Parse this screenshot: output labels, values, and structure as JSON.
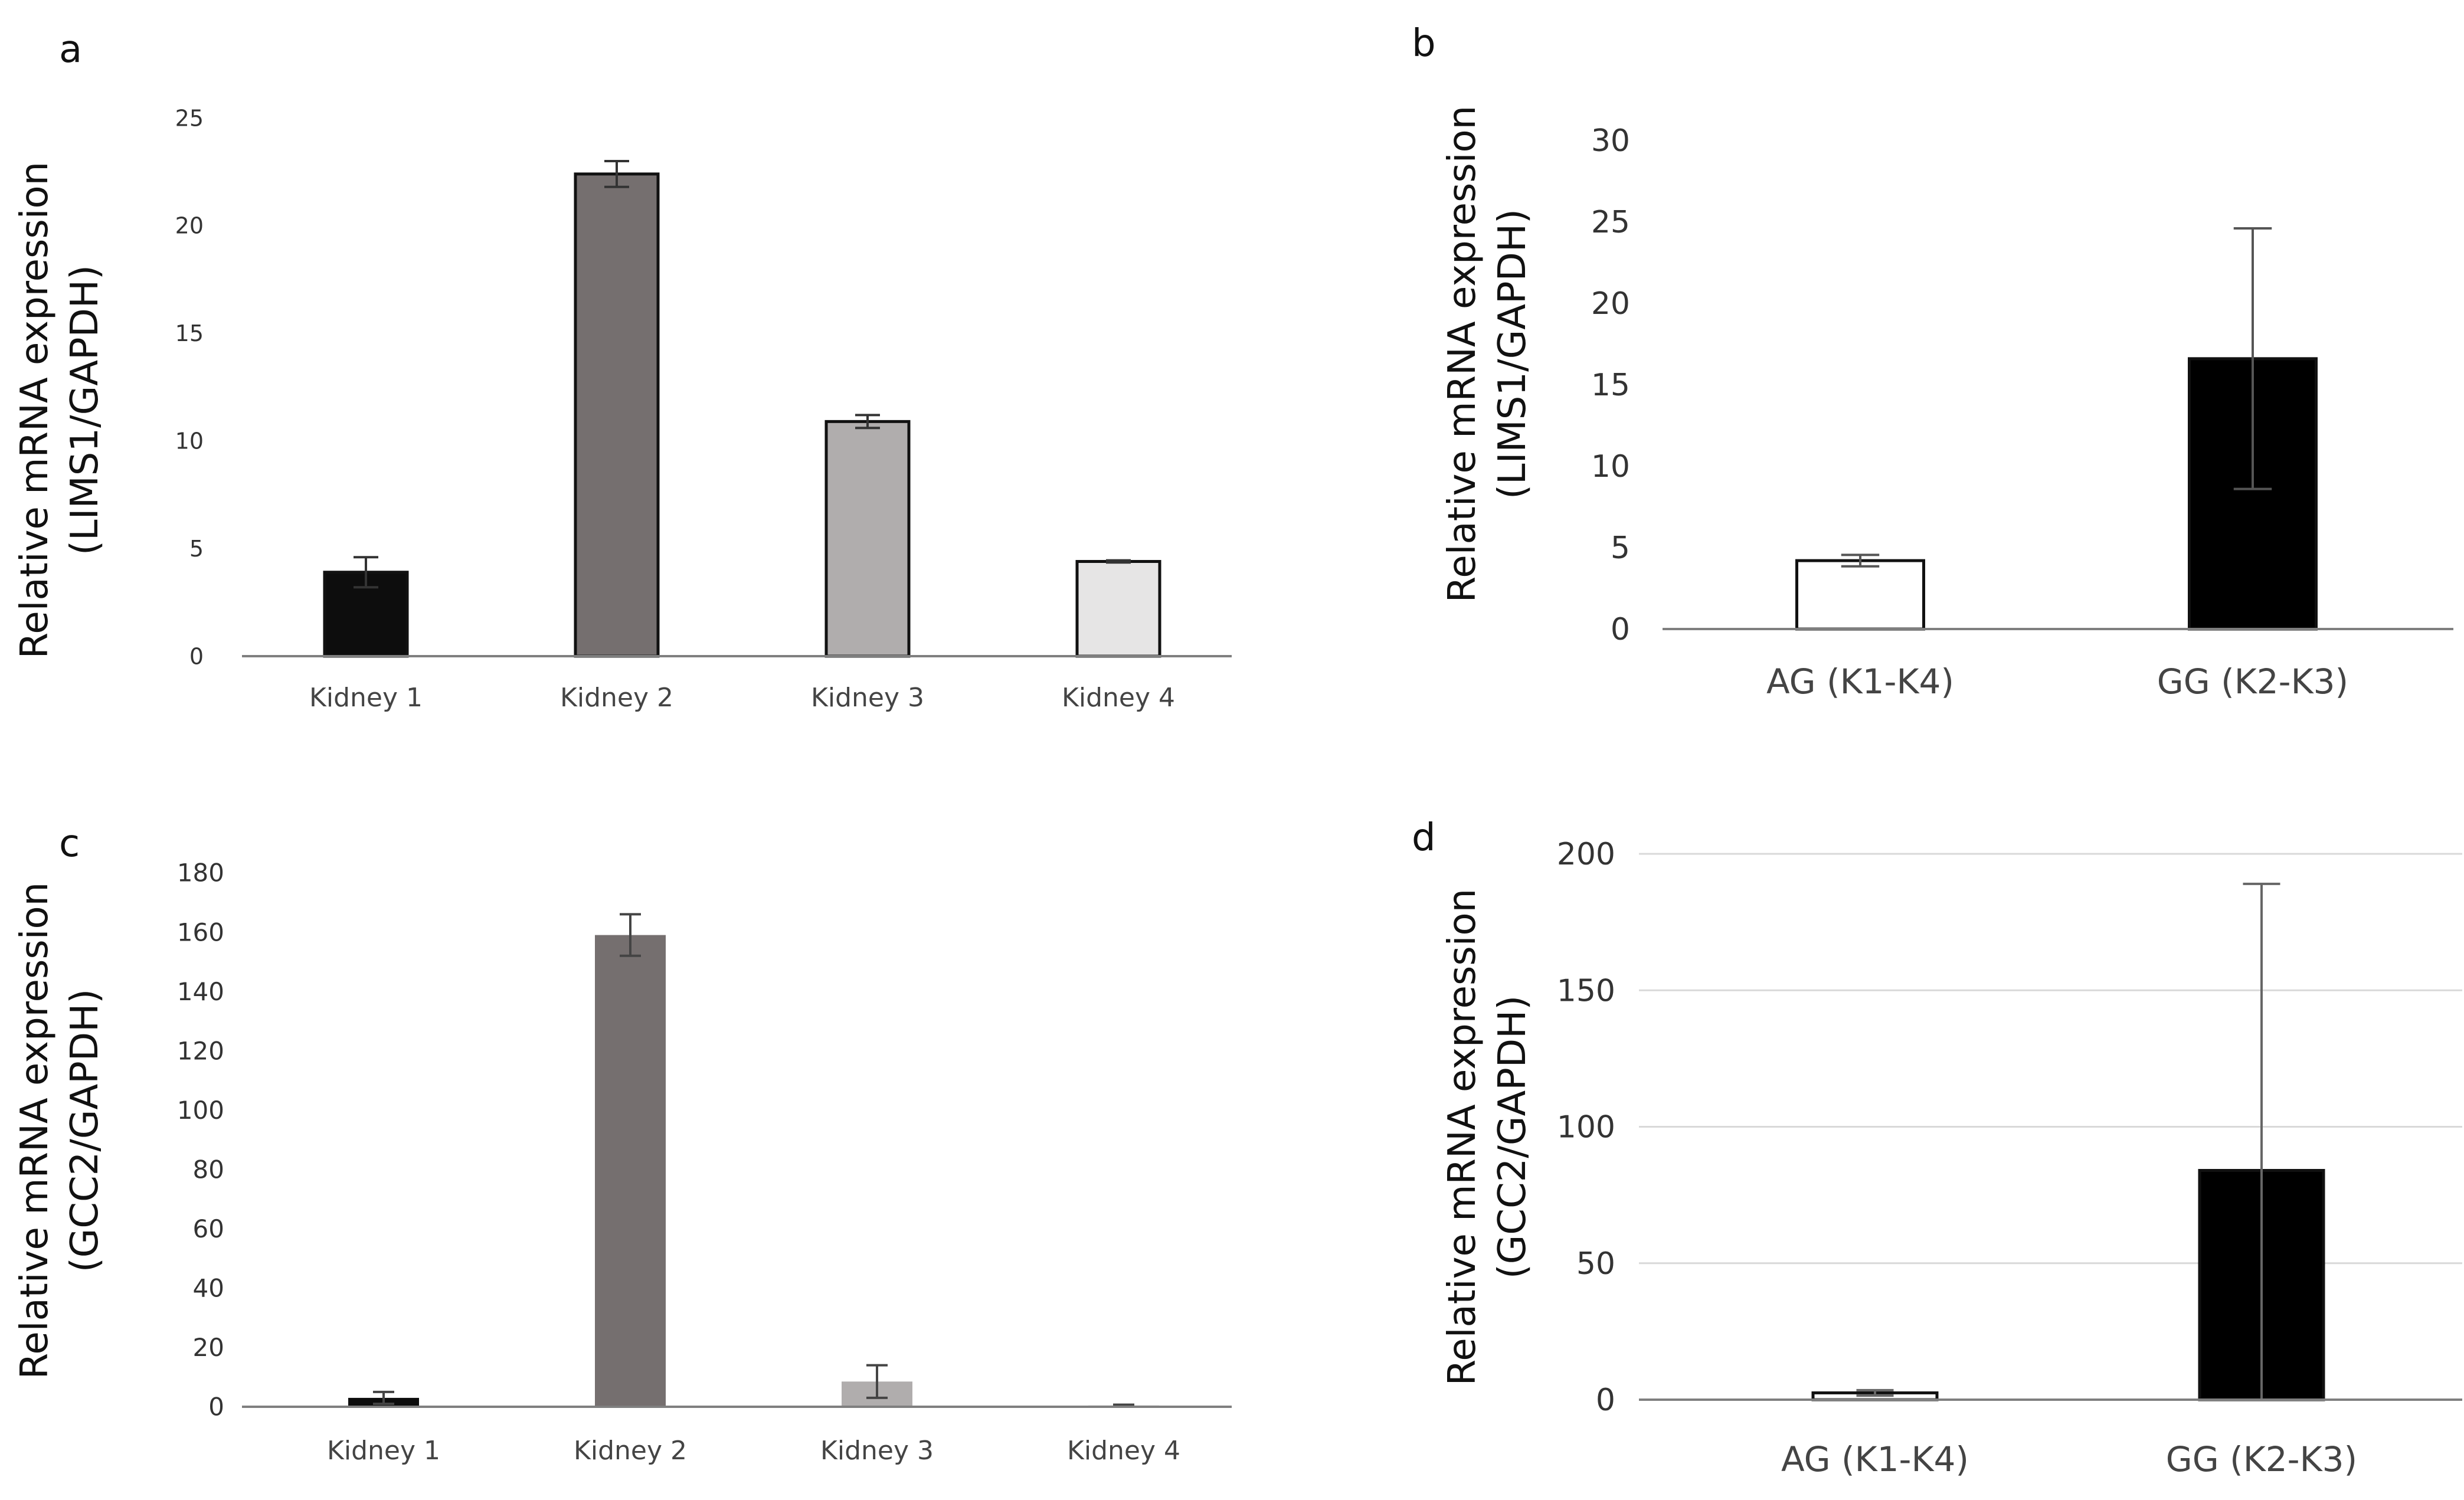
{
  "chart_data": [
    {
      "panel": "a",
      "type": "bar",
      "categories": [
        "Kidney 1",
        "Kidney 2",
        "Kidney 3",
        "Kidney 4"
      ],
      "values": [
        3.9,
        22.4,
        10.9,
        4.4
      ],
      "errors": [
        0.7,
        0.6,
        0.3,
        0.05
      ],
      "colors": [
        "#0d0d0d",
        "#756f6f",
        "#b0adad",
        "#e6e5e5"
      ],
      "ylabel_line1": "Relative mRNA expression",
      "ylabel_line2": "(LIMS1/GAPDH)",
      "ylim": [
        0,
        25
      ],
      "yticks": [
        0,
        5,
        10,
        15,
        20,
        25
      ],
      "grid": false
    },
    {
      "panel": "b",
      "type": "bar",
      "categories": [
        "AG (K1-K4)",
        "GG (K2-K3)"
      ],
      "values": [
        4.2,
        16.6
      ],
      "errors": [
        0.35,
        8.0
      ],
      "colors": [
        "#ffffff",
        "#000000"
      ],
      "ylabel_line1": "Relative mRNA expression",
      "ylabel_line2": "(LIMS1/GAPDH)",
      "ylim": [
        0,
        30
      ],
      "yticks": [
        0,
        5,
        10,
        15,
        20,
        25,
        30
      ],
      "grid": false
    },
    {
      "panel": "c",
      "type": "bar",
      "categories": [
        "Kidney 1",
        "Kidney 2",
        "Kidney 3",
        "Kidney 4"
      ],
      "values": [
        3,
        159,
        8.5,
        0.5
      ],
      "errors": [
        2,
        7,
        5.5,
        0.2
      ],
      "colors": [
        "#0d0d0d",
        "#756f6f",
        "#b0adad",
        "#e6e5e5"
      ],
      "ylabel_line1": "Relative mRNA expression",
      "ylabel_line2": "(GCC2/GAPDH)",
      "ylim": [
        0,
        180
      ],
      "yticks": [
        0,
        20,
        40,
        60,
        80,
        100,
        120,
        140,
        160,
        180
      ],
      "grid": false
    },
    {
      "panel": "d",
      "type": "bar",
      "categories": [
        "AG (K1-K4)",
        "GG (K2-K3)"
      ],
      "values": [
        2.5,
        84
      ],
      "errors": [
        1,
        105
      ],
      "colors": [
        "#ffffff",
        "#000000"
      ],
      "ylabel_line1": "Relative mRNA expression",
      "ylabel_line2": "(GCC2/GAPDH)",
      "ylim": [
        0,
        200
      ],
      "yticks": [
        0,
        50,
        100,
        150,
        200
      ],
      "grid": true
    }
  ]
}
